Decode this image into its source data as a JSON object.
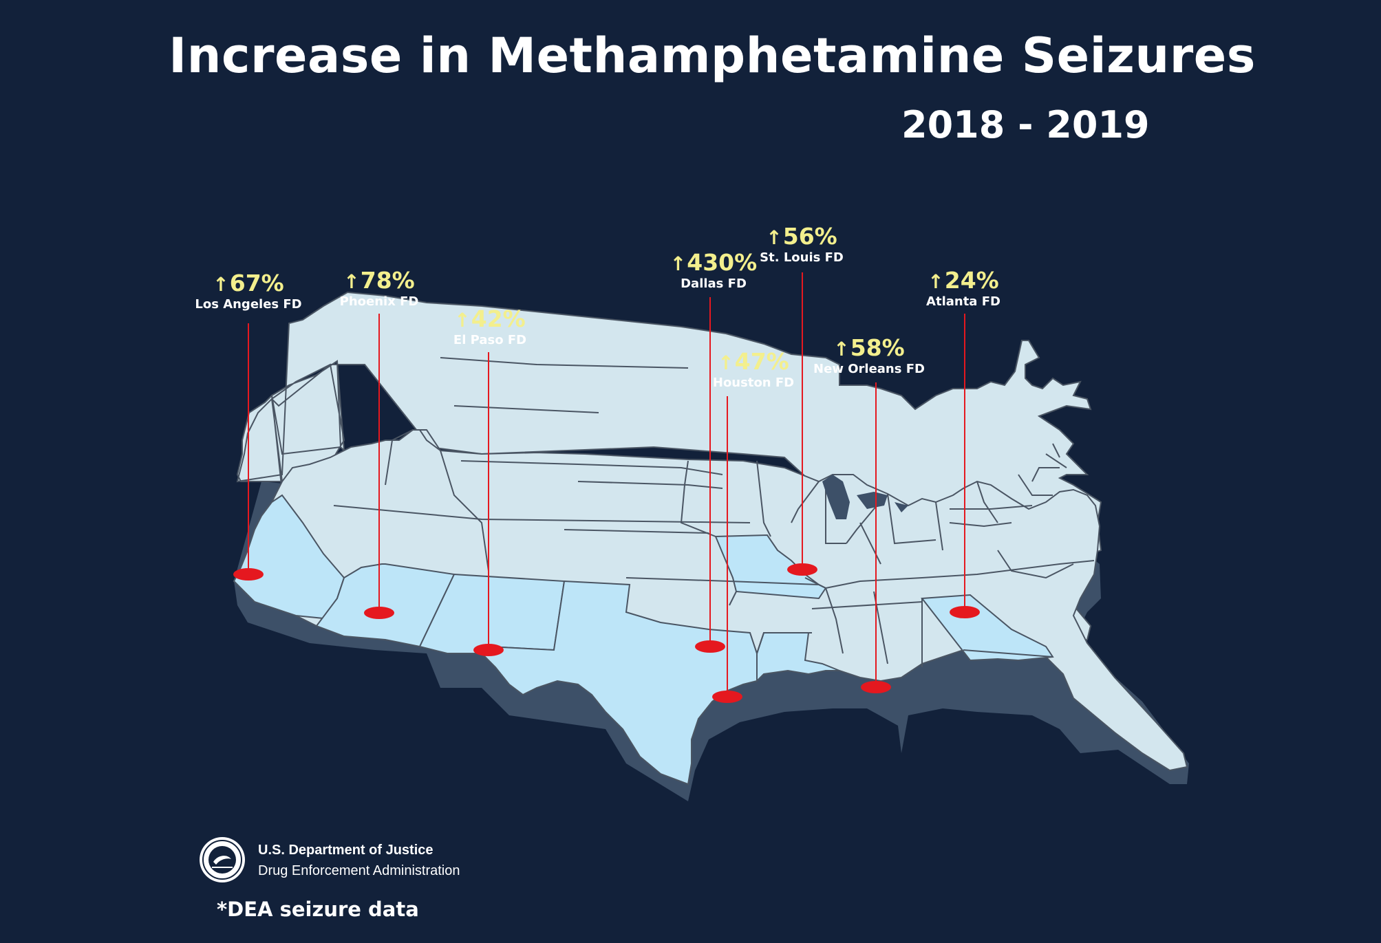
{
  "title": "Increase in Methamphetamine Seizures",
  "subtitle": "2018 - 2019",
  "colors": {
    "background": "#12213a",
    "map_land": "#d3e6ee",
    "map_highlight": "#bde5f8",
    "map_extrusion": "#3d5068",
    "state_border": "#4a5563",
    "marker": "#e5181f",
    "percent_text": "#f3ef8d"
  },
  "markers": [
    {
      "id": "los-angeles",
      "percent": "67%",
      "office": "Los Angeles FD"
    },
    {
      "id": "phoenix",
      "percent": "78%",
      "office": "Phoenix FD"
    },
    {
      "id": "el-paso",
      "percent": "42%",
      "office": "El Paso FD"
    },
    {
      "id": "dallas",
      "percent": "430%",
      "office": "Dallas FD"
    },
    {
      "id": "houston",
      "percent": "47%",
      "office": "Houston FD"
    },
    {
      "id": "st-louis",
      "percent": "56%",
      "office": "St. Louis FD"
    },
    {
      "id": "new-orleans",
      "percent": "58%",
      "office": "New Orleans FD"
    },
    {
      "id": "atlanta",
      "percent": "24%",
      "office": "Atlanta FD"
    }
  ],
  "footer": {
    "agency_name": "U.S. Department of Justice",
    "agency_sub": "Drug Enforcement Administration",
    "note": "*DEA seizure data",
    "seal_icon": "dea-seal-icon"
  }
}
